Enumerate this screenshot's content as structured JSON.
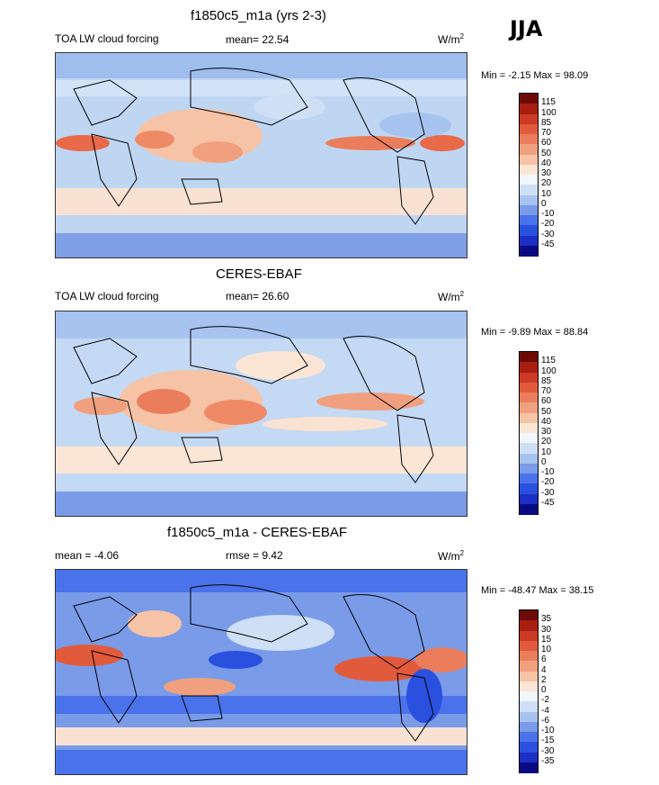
{
  "season": "JJA",
  "panels": [
    {
      "id": "model",
      "title": "f1850c5_m1a (yrs 2-3)",
      "left_label": "TOA LW cloud forcing",
      "center_label": "mean=  22.54",
      "units_base": "W/m",
      "units_exp": "2",
      "minmax": "Min =  -2.15 Max =  98.09",
      "colorbar_ticks": [
        "115",
        "100",
        "85",
        "70",
        "60",
        "50",
        "40",
        "30",
        "20",
        "10",
        "0",
        "-10",
        "-20",
        "-30",
        "-45"
      ]
    },
    {
      "id": "obs",
      "title": "CERES-EBAF",
      "left_label": "TOA LW cloud forcing",
      "center_label": "mean=  26.60",
      "units_base": "W/m",
      "units_exp": "2",
      "minmax": "Min =  -9.89 Max =  88.84",
      "colorbar_ticks": [
        "115",
        "100",
        "85",
        "70",
        "60",
        "50",
        "40",
        "30",
        "20",
        "10",
        "0",
        "-10",
        "-20",
        "-30",
        "-45"
      ]
    },
    {
      "id": "diff",
      "title": "f1850c5_m1a - CERES-EBAF",
      "left_label": "mean =  -4.06",
      "center_label": "rmse =   9.42",
      "units_base": "W/m",
      "units_exp": "2",
      "minmax": "Min = -48.47 Max =  38.15",
      "colorbar_ticks": [
        "35",
        "30",
        "15",
        "10",
        "6",
        "4",
        "2",
        "0",
        "-2",
        "-4",
        "-6",
        "-10",
        "-15",
        "-30",
        "-35"
      ]
    }
  ],
  "chart_data": [
    {
      "type": "heatmap",
      "title": "f1850c5_m1a (yrs 2-3)",
      "variable": "TOA LW cloud forcing",
      "units": "W/m2",
      "season": "JJA",
      "mean": 22.54,
      "min": -2.15,
      "max": 98.09,
      "contour_levels": [
        -45,
        -30,
        -20,
        -10,
        0,
        10,
        20,
        30,
        40,
        50,
        60,
        70,
        85,
        100,
        115
      ],
      "colors": [
        "#0a0a82",
        "#1c2fc4",
        "#2a50e0",
        "#4a72ea",
        "#7a9be8",
        "#a7c3f0",
        "#cfe0f6",
        "#f2f7fc",
        "#fbe6d6",
        "#f6c3a6",
        "#f0a07e",
        "#ea7e5c",
        "#e25a3c",
        "#cc3a24",
        "#a81e10",
        "#6e0a06"
      ]
    },
    {
      "type": "heatmap",
      "title": "CERES-EBAF",
      "variable": "TOA LW cloud forcing",
      "units": "W/m2",
      "season": "JJA",
      "mean": 26.6,
      "min": -9.89,
      "max": 88.84,
      "contour_levels": [
        -45,
        -30,
        -20,
        -10,
        0,
        10,
        20,
        30,
        40,
        50,
        60,
        70,
        85,
        100,
        115
      ],
      "colors": [
        "#0a0a82",
        "#1c2fc4",
        "#2a50e0",
        "#4a72ea",
        "#7a9be8",
        "#a7c3f0",
        "#cfe0f6",
        "#f2f7fc",
        "#fbe6d6",
        "#f6c3a6",
        "#f0a07e",
        "#ea7e5c",
        "#e25a3c",
        "#cc3a24",
        "#a81e10",
        "#6e0a06"
      ]
    },
    {
      "type": "heatmap",
      "title": "f1850c5_m1a - CERES-EBAF",
      "units": "W/m2",
      "season": "JJA",
      "mean": -4.06,
      "rmse": 9.42,
      "min": -48.47,
      "max": 38.15,
      "contour_levels": [
        -35,
        -30,
        -15,
        -10,
        -6,
        -4,
        -2,
        0,
        2,
        4,
        6,
        10,
        15,
        30,
        35
      ],
      "colors": [
        "#0a0a82",
        "#1c2fc4",
        "#2a50e0",
        "#4a72ea",
        "#7a9be8",
        "#a7c3f0",
        "#cfe0f6",
        "#f2f7fc",
        "#fbe6d6",
        "#f6c3a6",
        "#f0a07e",
        "#ea7e5c",
        "#e25a3c",
        "#cc3a24",
        "#a81e10",
        "#6e0a06"
      ]
    }
  ]
}
